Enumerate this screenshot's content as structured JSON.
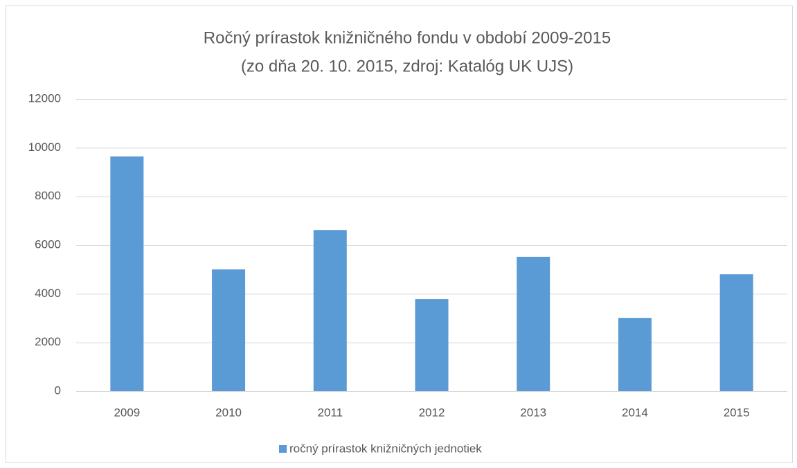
{
  "chart_data": {
    "type": "bar",
    "title": "Ročný prírastok knižničného fondu v období 2009-2015",
    "subtitle": "(zo dňa 20. 10. 2015, zdroj: Katalóg UK UJS)",
    "categories": [
      "2009",
      "2010",
      "2011",
      "2012",
      "2013",
      "2014",
      "2015"
    ],
    "series": [
      {
        "name": "ročný prírastok knižničných jednotiek",
        "color": "#5b9bd5",
        "values": [
          9640,
          5000,
          6620,
          3780,
          5520,
          3010,
          4800
        ]
      }
    ],
    "ylim": [
      0,
      12000
    ],
    "yticks": [
      0,
      2000,
      4000,
      6000,
      8000,
      10000,
      12000
    ],
    "grid": true,
    "legend": "bottom"
  }
}
